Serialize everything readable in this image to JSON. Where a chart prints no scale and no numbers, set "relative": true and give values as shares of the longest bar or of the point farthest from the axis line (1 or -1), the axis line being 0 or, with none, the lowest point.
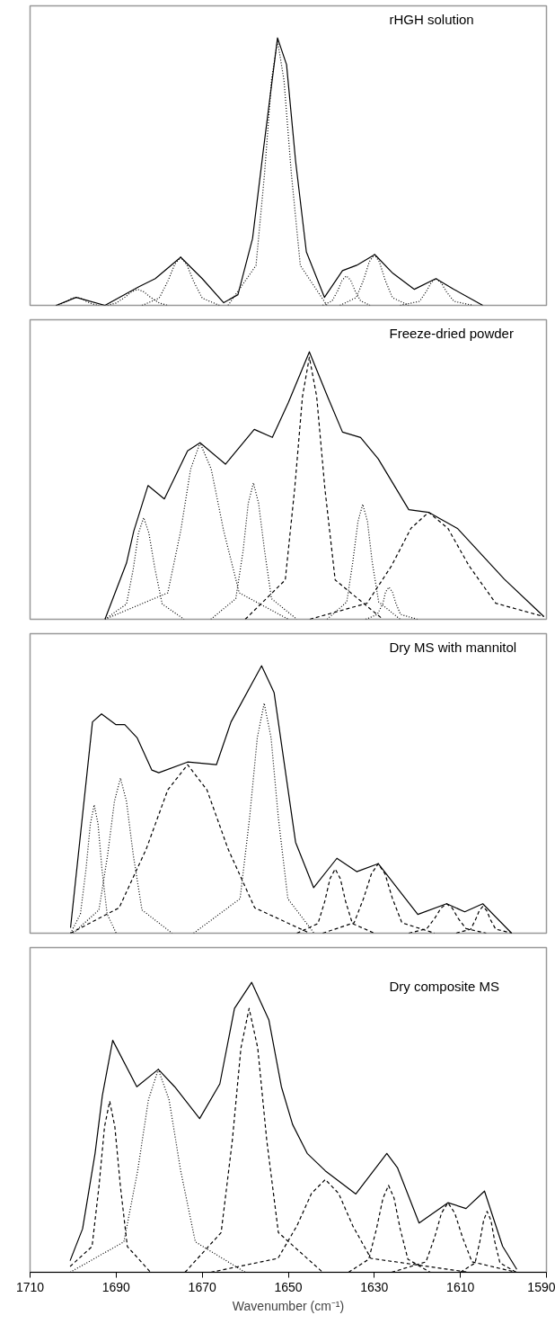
{
  "chart_data": [
    {
      "type": "line",
      "relative": true,
      "xlim": [
        1710,
        1590
      ],
      "tick_labels": false,
      "grid": false,
      "annotations": [
        "rHGH solution"
      ],
      "series": [
        {
          "color": "#000000",
          "line_style": "solid",
          "x": [
            1703.9,
            1699.3,
            1692.6,
            1684.7,
            1680.9,
            1675.0,
            1670.0,
            1665.0,
            1661.7,
            1658.3,
            1655.8,
            1652.5,
            1650.4,
            1648.3,
            1645.8,
            1641.6,
            1637.4,
            1634.1,
            1629.9,
            1625.7,
            1620.7,
            1615.7,
            1611.5,
            1604.8
          ],
          "values": [
            0,
            0.03,
            0,
            0.07,
            0.1,
            0.18,
            0.1,
            0.01,
            0.04,
            0.25,
            0.58,
            1.0,
            0.9,
            0.54,
            0.2,
            0.03,
            0.13,
            0.15,
            0.19,
            0.12,
            0.06,
            0.1,
            0.06,
            0
          ]
        },
        {
          "color": "#000000",
          "line_style": "dotted",
          "x": [
            1704,
            1702.95,
            1701.5,
            1700.36,
            1699.3,
            1698.2,
            1697,
            1695.5,
            1694
          ],
          "values": [
            0,
            0.005,
            0.015,
            0.026,
            0.03,
            0.026,
            0.015,
            0.005,
            0
          ]
        },
        {
          "color": "#000000",
          "line_style": "dotted",
          "x": [
            1692,
            1690,
            1688,
            1686.4,
            1685,
            1683.6,
            1682,
            1680,
            1678
          ],
          "values": [
            0,
            0.009,
            0.03,
            0.051,
            0.06,
            0.051,
            0.03,
            0.009,
            0
          ]
        },
        {
          "color": "#000000",
          "line_style": "dotted",
          "x": [
            1684,
            1680,
            1678,
            1676.4,
            1675,
            1673.6,
            1672,
            1670,
            1666
          ],
          "values": [
            0,
            0.027,
            0.09,
            0.153,
            0.18,
            0.153,
            0.09,
            0.027,
            0
          ]
        },
        {
          "color": "#000000",
          "line_style": "dotted",
          "x": [
            1664,
            1657.5,
            1655.5,
            1653.9,
            1652.5,
            1651,
            1649.3,
            1647.2,
            1641
          ],
          "values": [
            0,
            0.149,
            0.495,
            0.842,
            0.99,
            0.842,
            0.495,
            0.149,
            0
          ]
        },
        {
          "color": "#000000",
          "line_style": "dotted",
          "x": [
            1642,
            1639.8,
            1638.5,
            1637.5,
            1636.5,
            1635.5,
            1634.5,
            1633.2,
            1631
          ],
          "values": [
            0,
            0.017,
            0.055,
            0.094,
            0.11,
            0.094,
            0.055,
            0.017,
            0
          ]
        },
        {
          "color": "#000000",
          "line_style": "dotted",
          "x": [
            1638,
            1634.2,
            1632.5,
            1631.2,
            1630,
            1628.8,
            1627.5,
            1625.8,
            1622
          ],
          "values": [
            0,
            0.029,
            0.095,
            0.162,
            0.19,
            0.162,
            0.095,
            0.029,
            0
          ]
        },
        {
          "color": "#000000",
          "line_style": "dotted",
          "x": [
            1624,
            1619.5,
            1618,
            1616.8,
            1615.7,
            1614.5,
            1613.2,
            1611.5,
            1607
          ],
          "values": [
            0,
            0.015,
            0.05,
            0.085,
            0.1,
            0.085,
            0.05,
            0.015,
            0
          ]
        }
      ]
    },
    {
      "type": "line",
      "relative": true,
      "xlim": [
        1710,
        1590
      ],
      "tick_labels": false,
      "grid": false,
      "annotations": [
        "Freeze-dried powder"
      ],
      "series": [
        {
          "color": "#000000",
          "line_style": "solid",
          "x": [
            1692.6,
            1687.6,
            1685.9,
            1682.6,
            1678.8,
            1673.4,
            1670.5,
            1664.6,
            1657.9,
            1653.7,
            1650.0,
            1645.1,
            1640.8,
            1637.4,
            1633.2,
            1629.1,
            1622.0,
            1617.4,
            1610.7,
            1599.8,
            1590.6
          ],
          "values": [
            0,
            0.21,
            0.33,
            0.5,
            0.45,
            0.63,
            0.66,
            0.58,
            0.71,
            0.68,
            0.81,
            1.0,
            0.83,
            0.7,
            0.68,
            0.6,
            0.41,
            0.4,
            0.34,
            0.15,
            0.01
          ]
        },
        {
          "color": "#000000",
          "line_style": "dotted",
          "x": [
            1692.6,
            1687.6,
            1686,
            1684.8,
            1683.6,
            1682.4,
            1681,
            1679.3,
            1674.2
          ],
          "values": [
            0,
            0.057,
            0.19,
            0.323,
            0.38,
            0.323,
            0.19,
            0.057,
            0
          ]
        },
        {
          "color": "#000000",
          "line_style": "dotted",
          "x": [
            1692.6,
            1678,
            1675,
            1672.7,
            1670.5,
            1667.9,
            1665,
            1661.4,
            1650
          ],
          "values": [
            0,
            0.099,
            0.33,
            0.561,
            0.66,
            0.561,
            0.33,
            0.099,
            0
          ]
        },
        {
          "color": "#000000",
          "line_style": "dotted",
          "x": [
            1668,
            1662.2,
            1660.5,
            1659.3,
            1658.1,
            1656.9,
            1655.5,
            1653.9,
            1648
          ],
          "values": [
            0,
            0.077,
            0.255,
            0.434,
            0.51,
            0.434,
            0.255,
            0.077,
            0
          ]
        },
        {
          "color": "#000000",
          "line_style": "dashed",
          "x": [
            1660,
            1650.7,
            1648.5,
            1646.7,
            1645.1,
            1643.4,
            1641.5,
            1639.1,
            1628
          ],
          "values": [
            0,
            0.147,
            0.49,
            0.833,
            0.98,
            0.833,
            0.49,
            0.147,
            0
          ]
        },
        {
          "color": "#000000",
          "line_style": "dotted",
          "x": [
            1641,
            1636.4,
            1635,
            1633.8,
            1632.7,
            1631.6,
            1630.5,
            1629,
            1624
          ],
          "values": [
            0,
            0.065,
            0.215,
            0.366,
            0.43,
            0.366,
            0.215,
            0.065,
            0
          ]
        },
        {
          "color": "#000000",
          "line_style": "dotted",
          "x": [
            1632,
            1629.3,
            1628,
            1627.4,
            1626.6,
            1625.8,
            1625,
            1623.9,
            1620
          ],
          "values": [
            0,
            0.018,
            0.06,
            0.102,
            0.12,
            0.102,
            0.06,
            0.018,
            0
          ]
        },
        {
          "color": "#000000",
          "line_style": "dashed",
          "x": [
            1645,
            1631.7,
            1626,
            1621.5,
            1617.4,
            1612.9,
            1608,
            1601.8,
            1590.6
          ],
          "values": [
            0,
            0.06,
            0.2,
            0.34,
            0.4,
            0.34,
            0.2,
            0.06,
            0.01
          ]
        }
      ]
    },
    {
      "type": "line",
      "relative": true,
      "xlim": [
        1710,
        1590
      ],
      "tick_labels": false,
      "grid": false,
      "annotations": [
        "Dry MS with mannitol"
      ],
      "series": [
        {
          "color": "#000000",
          "line_style": "solid",
          "x": [
            1700.6,
            1695.5,
            1693.4,
            1690.1,
            1688.0,
            1685.1,
            1681.7,
            1680.1,
            1673.4,
            1666.7,
            1663.3,
            1656.2,
            1653.3,
            1648.3,
            1644.1,
            1638.7,
            1634.1,
            1629.1,
            1619.9,
            1613.2,
            1609.0,
            1604.8,
            1598.1
          ],
          "values": [
            0.02,
            0.79,
            0.82,
            0.78,
            0.78,
            0.73,
            0.61,
            0.6,
            0.64,
            0.63,
            0.79,
            1.0,
            0.9,
            0.34,
            0.17,
            0.28,
            0.23,
            0.26,
            0.07,
            0.11,
            0.08,
            0.11,
            0
          ]
        },
        {
          "color": "#000000",
          "line_style": "dotted",
          "x": [
            1700.6,
            1698.3,
            1697,
            1696,
            1695.1,
            1694.2,
            1693.3,
            1692.1,
            1690
          ],
          "values": [
            0,
            0.072,
            0.24,
            0.408,
            0.48,
            0.408,
            0.24,
            0.072,
            0
          ]
        },
        {
          "color": "#000000",
          "line_style": "dotted",
          "x": [
            1700,
            1694,
            1692,
            1690.4,
            1689,
            1687.6,
            1686,
            1684,
            1677
          ],
          "values": [
            0,
            0.087,
            0.29,
            0.493,
            0.58,
            0.493,
            0.29,
            0.087,
            0
          ]
        },
        {
          "color": "#000000",
          "line_style": "dashed",
          "x": [
            1700.6,
            1689.3,
            1683,
            1678,
            1673.4,
            1668.9,
            1664,
            1657.8,
            1645
          ],
          "values": [
            0,
            0.095,
            0.315,
            0.536,
            0.63,
            0.536,
            0.315,
            0.095,
            0
          ]
        },
        {
          "color": "#000000",
          "line_style": "dotted",
          "x": [
            1672,
            1661.2,
            1659,
            1657.2,
            1655.6,
            1654,
            1652.3,
            1650.1,
            1644
          ],
          "values": [
            0,
            0.129,
            0.43,
            0.731,
            0.86,
            0.731,
            0.43,
            0.129,
            0
          ]
        },
        {
          "color": "#000000",
          "line_style": "dashed",
          "x": [
            1648,
            1643.1,
            1641.5,
            1640.3,
            1639.1,
            1637.9,
            1636.7,
            1635.1,
            1630
          ],
          "values": [
            0,
            0.036,
            0.12,
            0.204,
            0.24,
            0.204,
            0.12,
            0.036,
            0
          ]
        },
        {
          "color": "#000000",
          "line_style": "dashed",
          "x": [
            1642,
            1634.7,
            1632.5,
            1630.7,
            1629.1,
            1627.5,
            1625.8,
            1623.6,
            1616
          ],
          "values": [
            0,
            0.039,
            0.13,
            0.221,
            0.26,
            0.221,
            0.13,
            0.039,
            0
          ]
        },
        {
          "color": "#000000",
          "line_style": "dashed",
          "x": [
            1622,
            1617.8,
            1616,
            1614.5,
            1613.2,
            1611.9,
            1610.5,
            1608.7,
            1604
          ],
          "values": [
            0,
            0.017,
            0.055,
            0.094,
            0.11,
            0.094,
            0.055,
            0.017,
            0
          ]
        },
        {
          "color": "#000000",
          "line_style": "dashed",
          "x": [
            1611,
            1607.6,
            1606.5,
            1605.6,
            1604.8,
            1603.9,
            1603,
            1601.8,
            1598
          ],
          "values": [
            0,
            0.015,
            0.05,
            0.085,
            0.1,
            0.085,
            0.05,
            0.015,
            0
          ]
        }
      ]
    },
    {
      "type": "line",
      "relative": true,
      "xlim": [
        1710,
        1590
      ],
      "xticks": [
        1710,
        1690,
        1670,
        1650,
        1630,
        1610,
        1590
      ],
      "tick_labels": "x",
      "grid": false,
      "xlabel": "Wavenumber (cm⁻¹)",
      "annotations": [
        "Dry composite MS"
      ],
      "series": [
        {
          "color": "#000000",
          "line_style": "solid",
          "x": [
            1700.7,
            1697.8,
            1694.9,
            1693.2,
            1690.8,
            1685.2,
            1680.2,
            1676.4,
            1670.6,
            1665.9,
            1662.5,
            1658.5,
            1654.5,
            1651.6,
            1649.0,
            1645.6,
            1641.4,
            1634.3,
            1627.1,
            1624.6,
            1619.6,
            1612.9,
            1608.7,
            1604.4,
            1600.2,
            1596.9
          ],
          "values": [
            0.04,
            0.15,
            0.41,
            0.61,
            0.8,
            0.64,
            0.7,
            0.64,
            0.53,
            0.65,
            0.91,
            1.0,
            0.87,
            0.64,
            0.51,
            0.41,
            0.35,
            0.27,
            0.41,
            0.36,
            0.17,
            0.24,
            0.22,
            0.28,
            0.09,
            0.01
          ]
        },
        {
          "color": "#000000",
          "line_style": "dashed",
          "x": [
            1700.7,
            1695.6,
            1694,
            1692.7,
            1691.5,
            1690.3,
            1689,
            1687.4,
            1682
          ],
          "values": [
            0.02,
            0.089,
            0.295,
            0.502,
            0.59,
            0.502,
            0.295,
            0.089,
            0
          ]
        },
        {
          "color": "#000000",
          "line_style": "dotted",
          "x": [
            1700.7,
            1688.2,
            1685,
            1682.5,
            1680.2,
            1677.7,
            1675,
            1671.6,
            1660
          ],
          "values": [
            0,
            0.105,
            0.35,
            0.595,
            0.7,
            0.595,
            0.35,
            0.105,
            0
          ]
        },
        {
          "color": "#000000",
          "line_style": "dashed",
          "x": [
            1674,
            1665.6,
            1663,
            1661,
            1659.1,
            1657.1,
            1655,
            1652.3,
            1642
          ],
          "values": [
            0,
            0.137,
            0.455,
            0.774,
            0.91,
            0.774,
            0.455,
            0.137,
            0
          ]
        },
        {
          "color": "#000000",
          "line_style": "dashed",
          "x": [
            1668,
            1652.4,
            1648,
            1644.6,
            1641.4,
            1638.3,
            1635,
            1630.8,
            1608
          ],
          "values": [
            0,
            0.048,
            0.16,
            0.272,
            0.32,
            0.272,
            0.16,
            0.048,
            0
          ]
        },
        {
          "color": "#000000",
          "line_style": "dashed",
          "x": [
            1636,
            1631.3,
            1629.5,
            1628,
            1626.7,
            1625.4,
            1624,
            1622.2,
            1617
          ],
          "values": [
            0,
            0.045,
            0.15,
            0.255,
            0.3,
            0.255,
            0.15,
            0.045,
            0
          ]
        },
        {
          "color": "#000000",
          "line_style": "dashed",
          "x": [
            1626,
            1618.0,
            1616,
            1614.4,
            1612.9,
            1611.3,
            1609.5,
            1607.3,
            1597
          ],
          "values": [
            0,
            0.036,
            0.12,
            0.204,
            0.24,
            0.204,
            0.12,
            0.036,
            0
          ]
        },
        {
          "color": "#000000",
          "line_style": "dashed",
          "x": [
            1610,
            1606.6,
            1605.5,
            1604.6,
            1603.8,
            1602.9,
            1602,
            1600.8,
            1597
          ],
          "values": [
            0,
            0.032,
            0.105,
            0.179,
            0.21,
            0.179,
            0.105,
            0.032,
            0
          ]
        }
      ]
    }
  ]
}
